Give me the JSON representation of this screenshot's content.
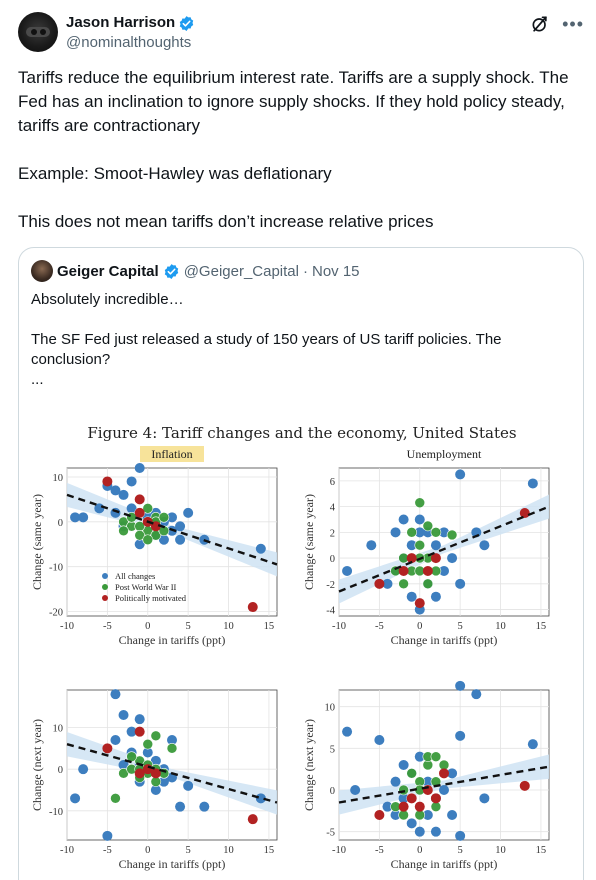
{
  "author": {
    "name": "Jason Harrison",
    "handle": "@nominalthoughts"
  },
  "icons": {
    "verified": "verified-badge-icon",
    "grok": "grok-icon",
    "more": "more-icon",
    "verified_color": "#1d9bf0"
  },
  "tweet": {
    "line1": "Tariffs reduce the equilibrium interest rate. Tariffs are a supply shock. The Fed has an inclination to ignore supply shocks. If they hold policy steady, tariffs are contractionary",
    "line2": "Example: Smoot-Hawley was deflationary",
    "line3": "This does not mean tariffs don’t increase relative prices"
  },
  "quote": {
    "name": "Geiger Capital",
    "handle": "@Geiger_Capital",
    "separator": "·",
    "date": "Nov 15",
    "line1": "Absolutely incredible…",
    "line2": "The SF Fed just released a study of 150 years of US tariff policies. The conclusion?",
    "line3": "..."
  },
  "figure": {
    "title": "Figure 4: Tariff changes and the economy, United States",
    "legend": [
      "All changes",
      "Post World War II",
      "Politically motivated"
    ],
    "colors": {
      "all": "#3d7ebf",
      "postwar": "#3a9a3a",
      "political": "#b22222",
      "band": "#cfe3f3",
      "header_bg": "#f7e39a"
    }
  },
  "chart_data": [
    {
      "type": "scatter",
      "title": "Inflation",
      "xlabel": "Change in tariffs (ppt)",
      "ylabel": "Change (same year)",
      "xlim": [
        -10,
        16
      ],
      "ylim": [
        -21,
        12
      ],
      "xticks": [
        -10,
        -5,
        0,
        5,
        10,
        15
      ],
      "yticks": [
        -20,
        -10,
        0,
        10
      ],
      "grid": true,
      "legend": "bottom-left",
      "fit": {
        "x": [
          -10,
          16
        ],
        "y": [
          6,
          -9.5
        ]
      },
      "series": [
        {
          "name": "All changes",
          "points": [
            [
              -9,
              1
            ],
            [
              -8,
              1
            ],
            [
              -5,
              8
            ],
            [
              -4,
              7
            ],
            [
              -3,
              6
            ],
            [
              -2,
              9
            ],
            [
              -1,
              12
            ],
            [
              -4,
              2
            ],
            [
              -2,
              3
            ],
            [
              1,
              2
            ],
            [
              2,
              0
            ],
            [
              3,
              -2
            ],
            [
              4,
              -4
            ],
            [
              4,
              -1
            ],
            [
              5,
              2
            ],
            [
              7,
              -4
            ],
            [
              14,
              -6
            ],
            [
              1,
              -3
            ],
            [
              -1,
              -5
            ],
            [
              2,
              -4
            ],
            [
              3,
              1
            ],
            [
              -3,
              -1
            ],
            [
              0,
              1
            ],
            [
              -6,
              3
            ],
            [
              1,
              -1
            ]
          ]
        },
        {
          "name": "Post World War II",
          "points": [
            [
              -3,
              0
            ],
            [
              -2,
              -1
            ],
            [
              -1,
              2
            ],
            [
              0,
              0
            ],
            [
              0,
              -2
            ],
            [
              1,
              1
            ],
            [
              1,
              -3
            ],
            [
              -1,
              -1
            ],
            [
              2,
              -2
            ],
            [
              -2,
              1
            ],
            [
              0,
              3
            ],
            [
              1,
              0
            ],
            [
              -1,
              -3
            ],
            [
              -3,
              -2
            ],
            [
              2,
              1
            ],
            [
              0,
              -4
            ]
          ]
        },
        {
          "name": "Politically motivated",
          "points": [
            [
              -5,
              9
            ],
            [
              -1,
              5
            ],
            [
              0,
              0
            ],
            [
              1,
              -1
            ],
            [
              -1,
              2
            ],
            [
              13,
              -19
            ]
          ]
        }
      ]
    },
    {
      "type": "scatter",
      "title": "Unemployment",
      "xlabel": "Change in tariffs (ppt)",
      "ylabel": "Change (same year)",
      "xlim": [
        -10,
        16
      ],
      "ylim": [
        -4.5,
        7
      ],
      "xticks": [
        -10,
        -5,
        0,
        5,
        10,
        15
      ],
      "yticks": [
        -4,
        -2,
        0,
        2,
        4,
        6
      ],
      "grid": true,
      "fit": {
        "x": [
          -10,
          16
        ],
        "y": [
          -2.6,
          4
        ]
      },
      "series": [
        {
          "name": "All changes",
          "points": [
            [
              -9,
              -1
            ],
            [
              -6,
              1
            ],
            [
              -4,
              -2
            ],
            [
              -3,
              2
            ],
            [
              -2,
              3
            ],
            [
              -1,
              1
            ],
            [
              0,
              3
            ],
            [
              1,
              2
            ],
            [
              2,
              1
            ],
            [
              3,
              -1
            ],
            [
              4,
              0
            ],
            [
              5,
              -2
            ],
            [
              5,
              6.5
            ],
            [
              7,
              2
            ],
            [
              8,
              1
            ],
            [
              14,
              5.8
            ],
            [
              -1,
              -3
            ],
            [
              0,
              -4
            ],
            [
              1,
              -2
            ],
            [
              2,
              -3
            ],
            [
              -2,
              0
            ],
            [
              3,
              2
            ],
            [
              -3,
              -1
            ],
            [
              0,
              2
            ]
          ]
        },
        {
          "name": "Post World War II",
          "points": [
            [
              -3,
              -1
            ],
            [
              -2,
              0
            ],
            [
              -1,
              -1
            ],
            [
              0,
              1
            ],
            [
              0,
              -1
            ],
            [
              1,
              0
            ],
            [
              1,
              -2
            ],
            [
              2,
              -1
            ],
            [
              -1,
              2
            ],
            [
              0,
              4.3
            ],
            [
              4,
              1.8
            ],
            [
              1,
              2.5
            ],
            [
              -2,
              -2
            ],
            [
              2,
              2
            ],
            [
              0,
              0
            ]
          ]
        },
        {
          "name": "Politically motivated",
          "points": [
            [
              -5,
              -2
            ],
            [
              -1,
              0
            ],
            [
              0,
              -3.5
            ],
            [
              1,
              -1
            ],
            [
              2,
              0
            ],
            [
              13,
              3.5
            ],
            [
              -2,
              -1
            ]
          ]
        }
      ]
    },
    {
      "type": "scatter",
      "title": "",
      "xlabel": "Change in tariffs (ppt)",
      "ylabel": "Change (next year)",
      "xlim": [
        -10,
        16
      ],
      "ylim": [
        -17,
        19
      ],
      "xticks": [
        -10,
        -5,
        0,
        5,
        10,
        15
      ],
      "yticks": [
        -10,
        0,
        10
      ],
      "grid": true,
      "fit": {
        "x": [
          -10,
          16
        ],
        "y": [
          6,
          -8
        ]
      },
      "series": [
        {
          "name": "All changes",
          "points": [
            [
              -9,
              -7
            ],
            [
              -8,
              0
            ],
            [
              -5,
              -16
            ],
            [
              -4,
              18
            ],
            [
              -3,
              13
            ],
            [
              -2,
              9
            ],
            [
              -1,
              12
            ],
            [
              -4,
              7
            ],
            [
              -2,
              4
            ],
            [
              1,
              2
            ],
            [
              2,
              0
            ],
            [
              3,
              -2
            ],
            [
              5,
              -4
            ],
            [
              4,
              -9
            ],
            [
              7,
              -9
            ],
            [
              14,
              -7
            ],
            [
              1,
              -5
            ],
            [
              -1,
              -3
            ],
            [
              2,
              -3
            ],
            [
              3,
              7
            ],
            [
              -3,
              1
            ],
            [
              0,
              4
            ],
            [
              -1,
              1
            ]
          ]
        },
        {
          "name": "Post World War II",
          "points": [
            [
              -3,
              -1
            ],
            [
              -2,
              0
            ],
            [
              -1,
              2
            ],
            [
              0,
              1
            ],
            [
              0,
              -1
            ],
            [
              1,
              0
            ],
            [
              1,
              -3
            ],
            [
              -1,
              -2
            ],
            [
              2,
              -1
            ],
            [
              -2,
              3
            ],
            [
              0,
              6
            ],
            [
              1,
              8
            ],
            [
              3,
              5
            ],
            [
              -4,
              -7
            ],
            [
              -1,
              0
            ]
          ]
        },
        {
          "name": "Politically motivated",
          "points": [
            [
              -5,
              5
            ],
            [
              -1,
              9
            ],
            [
              0,
              0
            ],
            [
              1,
              -1
            ],
            [
              -1,
              -1
            ],
            [
              13,
              -12
            ]
          ]
        }
      ]
    },
    {
      "type": "scatter",
      "title": "",
      "xlabel": "Change in tariffs (ppt)",
      "ylabel": "Change (next year)",
      "xlim": [
        -10,
        16
      ],
      "ylim": [
        -6,
        12
      ],
      "xticks": [
        -10,
        -5,
        0,
        5,
        10,
        15
      ],
      "yticks": [
        -5,
        0,
        5,
        10
      ],
      "grid": true,
      "fit": {
        "x": [
          -10,
          16
        ],
        "y": [
          -1.5,
          2.8
        ]
      },
      "series": [
        {
          "name": "All changes",
          "points": [
            [
              -9,
              7
            ],
            [
              -8,
              0
            ],
            [
              -5,
              6
            ],
            [
              -4,
              -2
            ],
            [
              -3,
              1
            ],
            [
              -2,
              3
            ],
            [
              -1,
              2
            ],
            [
              0,
              4
            ],
            [
              1,
              1
            ],
            [
              2,
              -1
            ],
            [
              3,
              0
            ],
            [
              4,
              -3
            ],
            [
              5,
              6.5
            ],
            [
              5,
              12.5
            ],
            [
              7,
              11.5
            ],
            [
              8,
              -1
            ],
            [
              14,
              5.5
            ],
            [
              -1,
              -4
            ],
            [
              0,
              -5
            ],
            [
              1,
              -3
            ],
            [
              2,
              -5
            ],
            [
              -2,
              -1
            ],
            [
              4,
              2
            ],
            [
              -3,
              -3
            ],
            [
              5,
              -5.5
            ]
          ]
        },
        {
          "name": "Post World War II",
          "points": [
            [
              -3,
              -2
            ],
            [
              -2,
              0
            ],
            [
              -1,
              -1
            ],
            [
              0,
              1
            ],
            [
              0,
              -2
            ],
            [
              1,
              0
            ],
            [
              1,
              3
            ],
            [
              2,
              1
            ],
            [
              -1,
              2
            ],
            [
              0,
              -3
            ],
            [
              2,
              -2
            ],
            [
              1,
              4
            ],
            [
              -2,
              -3
            ],
            [
              3,
              3
            ],
            [
              0,
              0
            ],
            [
              2,
              4
            ]
          ]
        },
        {
          "name": "Politically motivated",
          "points": [
            [
              -5,
              -3
            ],
            [
              -1,
              -1
            ],
            [
              0,
              -2
            ],
            [
              1,
              0
            ],
            [
              2,
              -1
            ],
            [
              13,
              0.5
            ],
            [
              -2,
              -2
            ],
            [
              3,
              2
            ]
          ]
        }
      ]
    }
  ]
}
